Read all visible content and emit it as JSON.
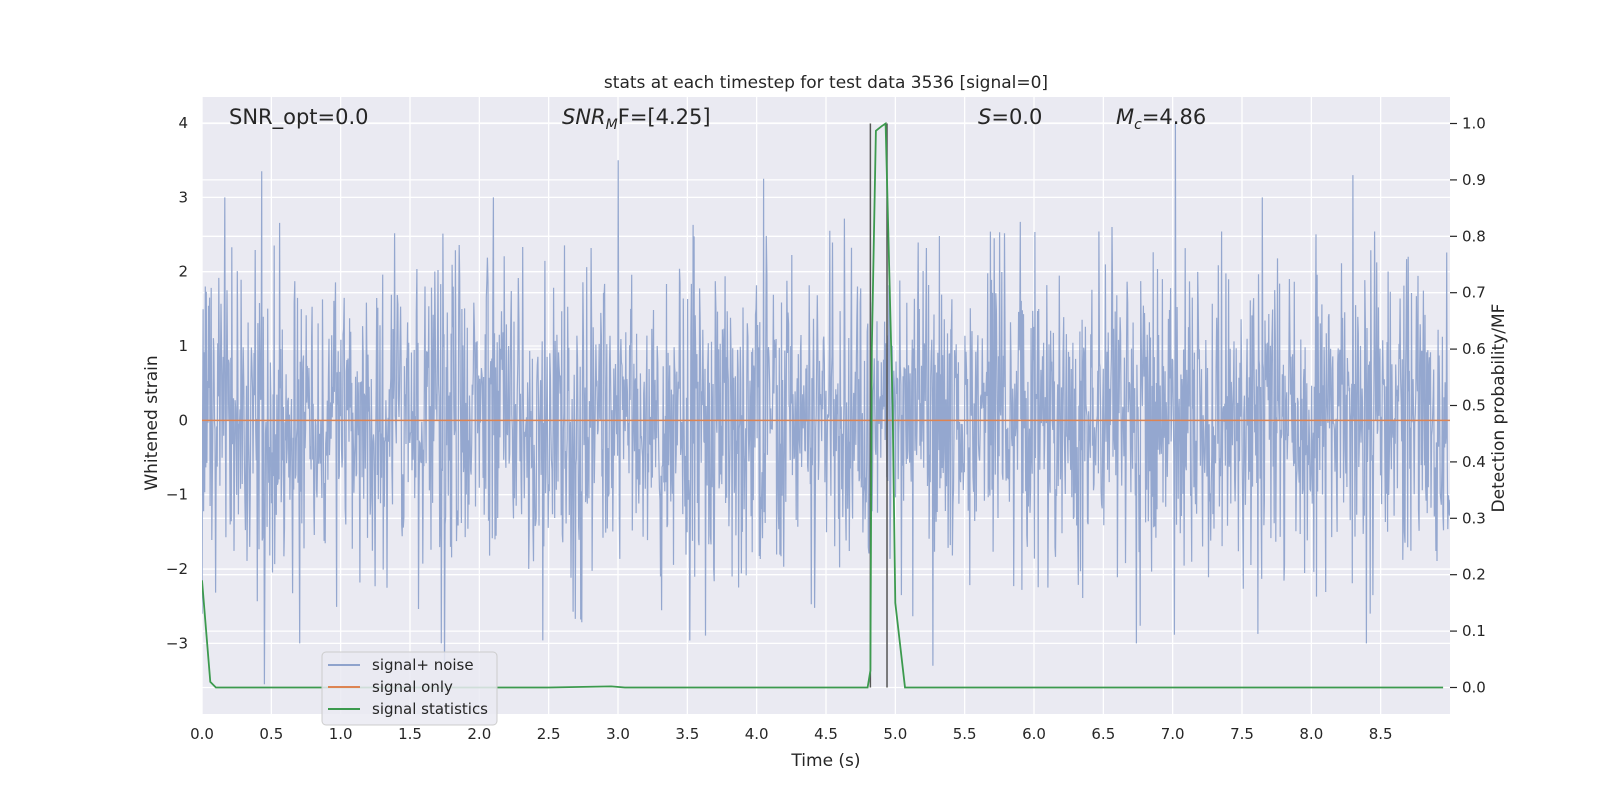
{
  "chart_data": {
    "type": "line",
    "title": "stats at each timestep for test data 3536 [signal=0]",
    "xlabel": "Time (s)",
    "ylabel": "Whitened strain",
    "y2label": "Detection probability/MF",
    "xlim": [
      0.0,
      9.0
    ],
    "ylim": [
      -3.95,
      4.35
    ],
    "y2lim": [
      -0.047,
      1.047
    ],
    "x_ticks": [
      "0.0",
      "0.5",
      "1.0",
      "1.5",
      "2.0",
      "2.5",
      "3.0",
      "3.5",
      "4.0",
      "4.5",
      "5.0",
      "5.5",
      "6.0",
      "6.5",
      "7.0",
      "7.5",
      "8.0",
      "8.5"
    ],
    "y_ticks": [
      "4",
      "3",
      "2",
      "1",
      "0",
      "−1",
      "−2",
      "−3"
    ],
    "y2_ticks": [
      "1.0",
      "0.9",
      "0.8",
      "0.7",
      "0.6",
      "0.5",
      "0.4",
      "0.3",
      "0.2",
      "0.1",
      "0.0"
    ],
    "grid": true,
    "legend_position": "lower-left",
    "annotations": {
      "snr_opt": "SNR_opt=0.0",
      "snr_mf_base": "SNR",
      "snr_mf_sub": "M",
      "snr_mf_tail": "F=[4.25]",
      "s_label": "S",
      "s_value": "=0.0",
      "mc_base": "M",
      "mc_sub": "c",
      "mc_value": "=4.86"
    },
    "series": [
      {
        "name": "signal+ noise",
        "color": "#8fa3cc",
        "description": "whitened noise time series, amplitude roughly within [-3.6, 4.0]",
        "peaks": [
          {
            "x": 0.43,
            "y": 3.35
          },
          {
            "x": 3.0,
            "y": 3.5
          },
          {
            "x": 4.05,
            "y": 3.25
          },
          {
            "x": 7.02,
            "y": 4.0
          },
          {
            "x": 8.3,
            "y": 3.3
          },
          {
            "x": 0.45,
            "y": -3.55
          },
          {
            "x": 1.75,
            "y": -3.35
          },
          {
            "x": 5.27,
            "y": -3.3
          }
        ]
      },
      {
        "name": "signal only",
        "color": "#dd8452",
        "x": [
          0.0,
          9.0
        ],
        "y": [
          0.0,
          0.0
        ]
      },
      {
        "name": "signal statistics",
        "color": "#3c9a4e",
        "axis": "right",
        "x": [
          0.0,
          0.06,
          0.1,
          0.2,
          2.5,
          2.95,
          3.05,
          4.8,
          4.82,
          4.83,
          4.86,
          4.9,
          4.93,
          4.98,
          5.0,
          5.07,
          8.95
        ],
        "y": [
          0.19,
          0.01,
          0.0,
          0.0,
          0.0,
          0.002,
          0.0,
          0.0,
          0.03,
          0.6,
          0.987,
          0.995,
          1.0,
          0.5,
          0.15,
          0.0,
          0.0
        ]
      }
    ],
    "vlines": [
      {
        "x": 4.82,
        "color": "#555555"
      },
      {
        "x": 4.94,
        "color": "#555555"
      }
    ]
  }
}
